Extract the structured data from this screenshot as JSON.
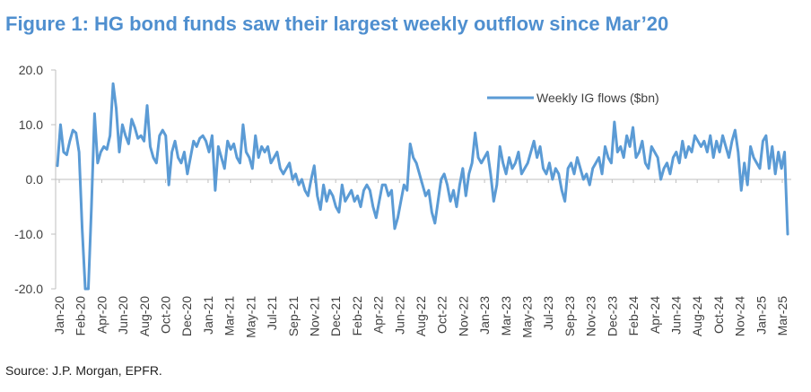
{
  "title": "Figure 1: HG bond funds saw their largest weekly outflow since Mar’20",
  "source": "Source: J.P. Morgan, EPFR.",
  "colors": {
    "title": "#4f8fcf",
    "series": "#5b9bd5",
    "axis": "#bfbfbf"
  },
  "chart_data": {
    "type": "line",
    "title": "Figure 1: HG bond funds saw their largest weekly outflow since Mar’20",
    "xlabel": "",
    "ylabel": "",
    "ylim": [
      -20,
      20
    ],
    "y_ticks": [
      "20.0",
      "10.0",
      "0.0",
      "-10.0",
      "-20.0"
    ],
    "y_tick_values": [
      20,
      10,
      0,
      -10,
      -20
    ],
    "x_tick_labels": [
      "Jan-20",
      "Feb-20",
      "Apr-20",
      "Jun-20",
      "Aug-20",
      "Oct-20",
      "Dec-20",
      "Jan-21",
      "Mar-21",
      "May-21",
      "Jul-21",
      "Sep-21",
      "Nov-21",
      "Dec-21",
      "Feb-22",
      "Apr-22",
      "Jun-22",
      "Aug-22",
      "Oct-22",
      "Nov-22",
      "Jan-23",
      "Mar-23",
      "May-23",
      "Jul-23",
      "Sep-23",
      "Nov-23",
      "Dec-23",
      "Feb-24",
      "Apr-24",
      "Jun-24",
      "Aug-24",
      "Oct-24",
      "Nov-24",
      "Jan-25",
      "Mar-25"
    ],
    "grid": false,
    "legend_position": "top-right",
    "series": [
      {
        "name": "Weekly IG flows ($bn)",
        "values": [
          2.5,
          10,
          5,
          4.5,
          7,
          9,
          8.5,
          5,
          -9,
          -21,
          -22,
          -5,
          12,
          3,
          5,
          6,
          5.5,
          8,
          17.5,
          13,
          5,
          10,
          8,
          6.5,
          11,
          9.5,
          7.5,
          8,
          7,
          13.5,
          6,
          4,
          3,
          8,
          9,
          8,
          -1,
          5,
          7,
          4,
          3,
          5,
          1,
          4,
          7,
          6,
          7.5,
          8,
          7,
          5,
          8,
          -2,
          6,
          4,
          2,
          7,
          5.5,
          6.5,
          4,
          3,
          10,
          5,
          4,
          2,
          8,
          4,
          6,
          5,
          6,
          3,
          4,
          5,
          2,
          1,
          2,
          3,
          0,
          1,
          -1,
          0,
          -2,
          -3,
          0,
          2.5,
          -3,
          -5.5,
          -1,
          -4,
          -2,
          -3,
          -5,
          -6,
          -1,
          -4,
          -3,
          -2,
          -4,
          -3,
          -5,
          -2,
          -1,
          -2,
          -5,
          -7,
          -4,
          -1,
          -1,
          -3,
          -2,
          -9,
          -7,
          -4,
          -1,
          -2,
          6.5,
          4,
          3,
          1,
          -1,
          -3,
          -2,
          -6,
          -8,
          -4,
          0,
          1,
          -1,
          -4,
          -2,
          -5,
          -1,
          2,
          -3,
          1,
          3,
          8.5,
          4,
          3,
          4,
          5,
          1,
          -4,
          -1,
          6,
          3,
          1,
          4,
          2,
          3,
          5,
          1,
          2,
          3,
          5,
          7,
          4,
          6,
          2,
          1,
          3,
          0,
          2,
          1,
          -2,
          -4,
          2,
          3,
          1,
          4,
          2,
          0,
          1,
          -1,
          2,
          3,
          4,
          1,
          6,
          4,
          3,
          10.5,
          5,
          6,
          4,
          8,
          6,
          9.5,
          4,
          5,
          7,
          3,
          2,
          6,
          5,
          4,
          0,
          2,
          3,
          1,
          4,
          5,
          3,
          7,
          4,
          6,
          5,
          8,
          7,
          6,
          7,
          5,
          8,
          4,
          7,
          5,
          8,
          6,
          4,
          7,
          9,
          5,
          -2,
          3,
          -1,
          6,
          4,
          3,
          2,
          7,
          8,
          2,
          6,
          1,
          5,
          2,
          5,
          -10
        ]
      }
    ]
  }
}
